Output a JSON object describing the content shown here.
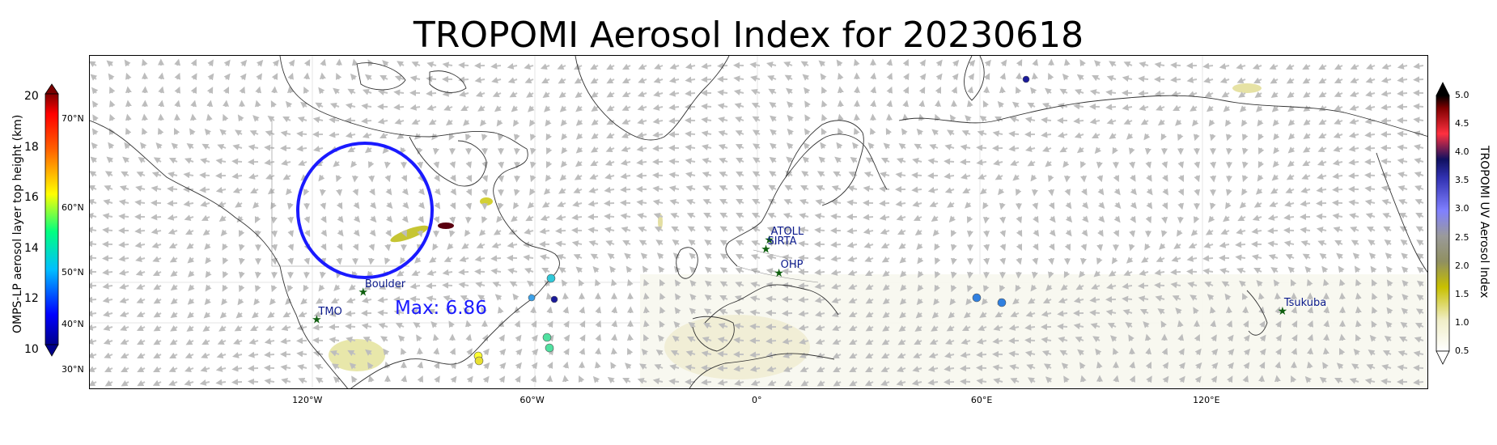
{
  "title": "TROPOMI Aerosol Index for 20230618",
  "max_annotation": "Max: 6.86",
  "x_ticks": [
    {
      "label": "120°W",
      "lon": -120
    },
    {
      "label": "60°W",
      "lon": -60
    },
    {
      "label": "0°",
      "lon": 0
    },
    {
      "label": "60°E",
      "lon": 60
    },
    {
      "label": "120°E",
      "lon": 120
    }
  ],
  "left_colorbar": {
    "label": "OMPS-LP aerosol layer top height (km)",
    "ticks": [
      "20",
      "18",
      "16",
      "14",
      "12",
      "10"
    ],
    "lat_ticks": [
      "70°N",
      "60°N",
      "50°N",
      "40°N",
      "30°N"
    ]
  },
  "right_colorbar": {
    "label": "TROPOMI UV Aerosol Index",
    "ticks": [
      "5.0",
      "4.5",
      "4.0",
      "3.5",
      "3.0",
      "2.5",
      "2.0",
      "1.5",
      "1.0",
      "0.5"
    ]
  },
  "stations": [
    {
      "name": "TMO",
      "lon": -117.7,
      "lat": 34.4
    },
    {
      "name": "Boulder",
      "lon": -105.3,
      "lat": 40.0
    },
    {
      "name": "ATOLL",
      "lon": 3.1,
      "lat": 50.6
    },
    {
      "name": "SIRTA",
      "lon": 2.2,
      "lat": 48.7
    },
    {
      "name": "OHP",
      "lon": 5.7,
      "lat": 43.9
    },
    {
      "name": "Tsukuba",
      "lon": 140.1,
      "lat": 36.1
    }
  ],
  "colors": {
    "circle": "#1a1aff",
    "station_marker": "#0f5f0f",
    "station_label": "#0b1a8c"
  }
}
